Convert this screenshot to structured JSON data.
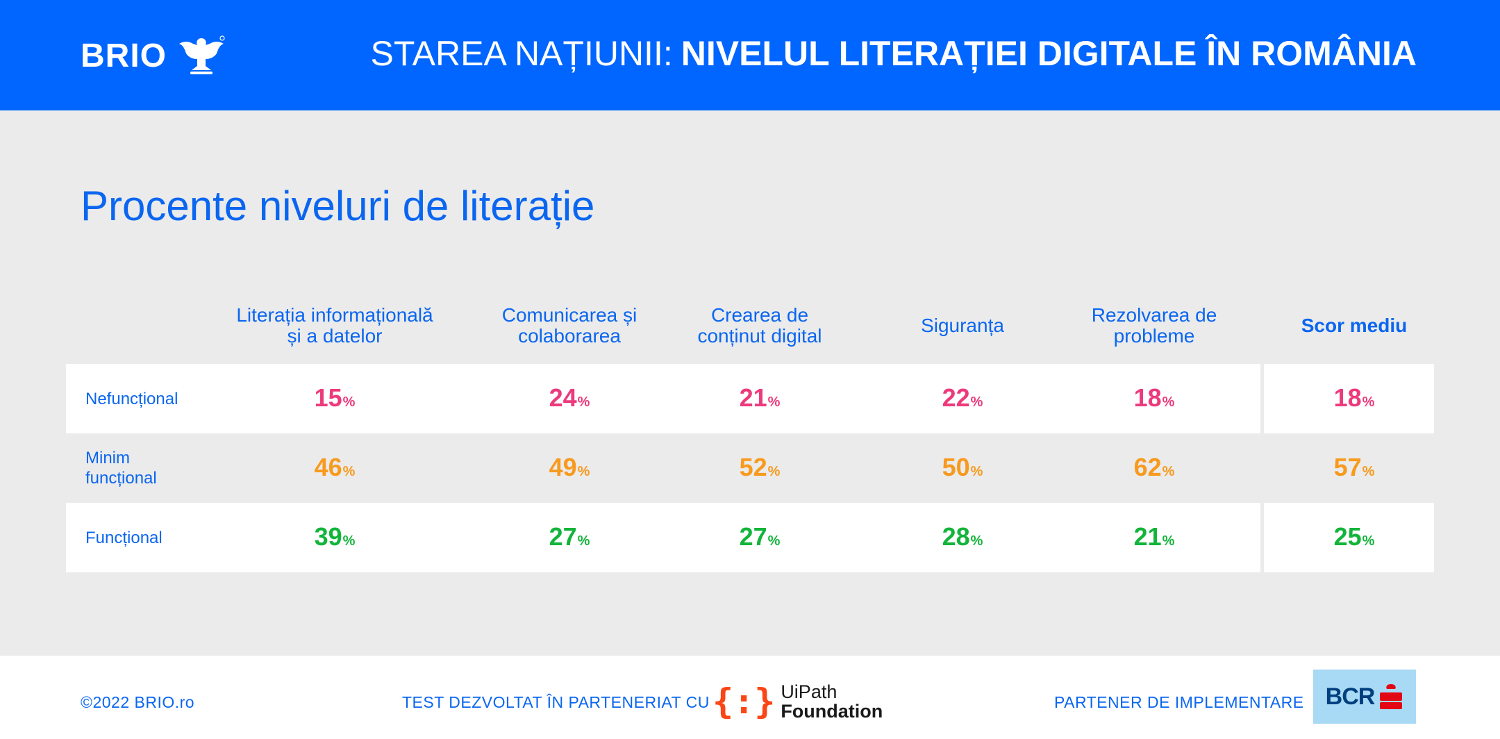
{
  "header": {
    "brand": "BRIO",
    "title_light": "STAREA NAȚIUNII:",
    "title_bold": "NIVELUL LITERAȚIEI DIGITALE ÎN ROMÂNIA",
    "color": "#0066ff"
  },
  "section_title": "Procente niveluri de literație",
  "chart_data": {
    "type": "table",
    "title": "Procente niveluri de literație",
    "columns": [
      "Literația informațională\nși a datelor",
      "Comunicarea și\ncolaborarea",
      "Crearea de\nconținut digital",
      "Siguranța",
      "Rezolvarea de\nprobleme",
      "Scor mediu"
    ],
    "rows": [
      {
        "label": "Nefuncțional",
        "values": [
          15,
          24,
          21,
          22,
          18,
          18
        ],
        "color": "#ec3a7c"
      },
      {
        "label": "Minim\nfuncțional",
        "values": [
          46,
          49,
          52,
          50,
          62,
          57
        ],
        "color": "#f79a1e"
      },
      {
        "label": "Funcțional",
        "values": [
          39,
          27,
          27,
          28,
          21,
          25
        ],
        "color": "#12b43a"
      }
    ],
    "unit": "%"
  },
  "footer": {
    "copyright": "©2022  BRIO.ro",
    "partner_label": "TEST DEZVOLTAT ÎN PARTENERIAT CU",
    "partner_logo_line1": "UiPath",
    "partner_logo_line2": "Foundation",
    "implementation_label": "PARTENER DE IMPLEMENTARE",
    "implementation_logo": "BCR"
  }
}
